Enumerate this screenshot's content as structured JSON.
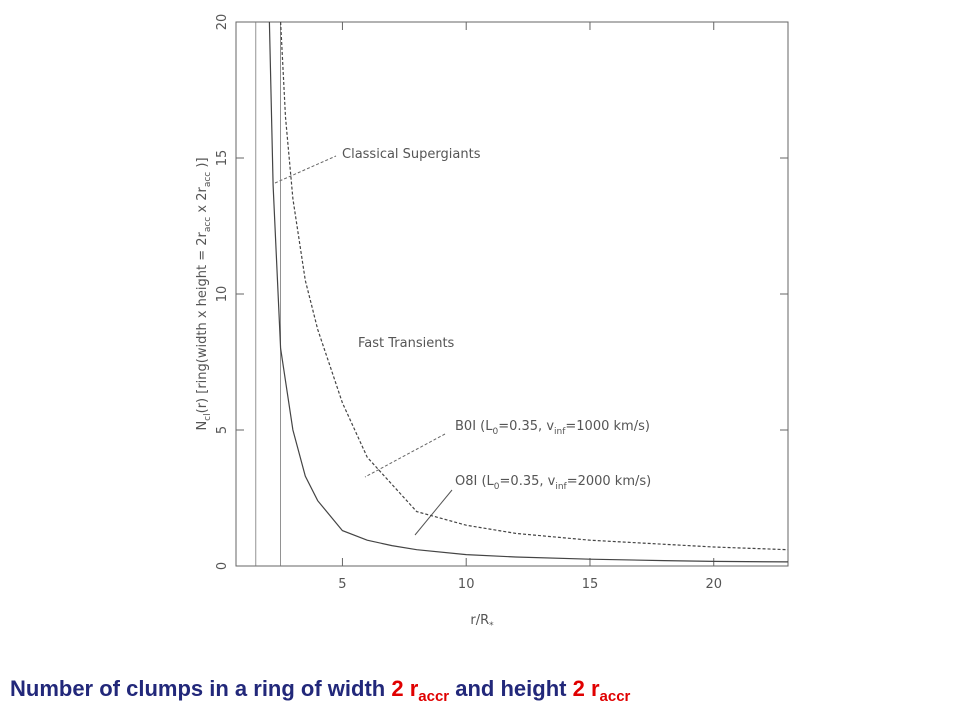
{
  "chart_data": {
    "type": "line",
    "xlabel": [
      "r/R",
      "*"
    ],
    "ylabel": [
      "N",
      "cl",
      "(r) [ring(width x height = 2r",
      "acc",
      " x 2r",
      "acc",
      " )]"
    ],
    "xlim": [
      0.7,
      23
    ],
    "ylim": [
      0,
      20
    ],
    "xticks": [
      5,
      10,
      15,
      20
    ],
    "yticks": [
      0,
      5,
      10,
      15,
      20
    ],
    "vlines": [
      1.5,
      2.5
    ],
    "series": [
      {
        "name": "O8I",
        "color": "#444",
        "dash": false,
        "x": [
          2.05,
          2.2,
          2.5,
          3,
          3.5,
          4,
          5,
          6,
          7,
          8,
          10,
          12,
          15,
          18,
          20,
          23
        ],
        "values": [
          20,
          14,
          8,
          5,
          3.3,
          2.4,
          1.3,
          0.95,
          0.75,
          0.6,
          0.42,
          0.33,
          0.25,
          0.2,
          0.17,
          0.15
        ]
      },
      {
        "name": "B0I",
        "color": "#444",
        "dash": true,
        "x": [
          2.5,
          2.7,
          3,
          3.5,
          4,
          5,
          6,
          8,
          10,
          12,
          15,
          20,
          23
        ],
        "values": [
          20,
          16.5,
          13.5,
          10.5,
          8.7,
          6,
          4,
          2,
          1.5,
          1.2,
          0.95,
          0.7,
          0.6
        ]
      }
    ],
    "annotations": [
      [
        "Classical Supergiants"
      ],
      [
        "Fast Transients"
      ],
      [
        "B0I (L",
        "0",
        "=0.35, v",
        "inf",
        "=1000 km/s)"
      ],
      [
        "O8I (L",
        "0",
        "=0.35, v",
        "inf",
        "=2000 km/s)"
      ]
    ]
  },
  "caption": [
    "Number of clumps in a ring of width ",
    "2 r",
    "accr",
    " and height ",
    "2 r",
    "accr"
  ]
}
